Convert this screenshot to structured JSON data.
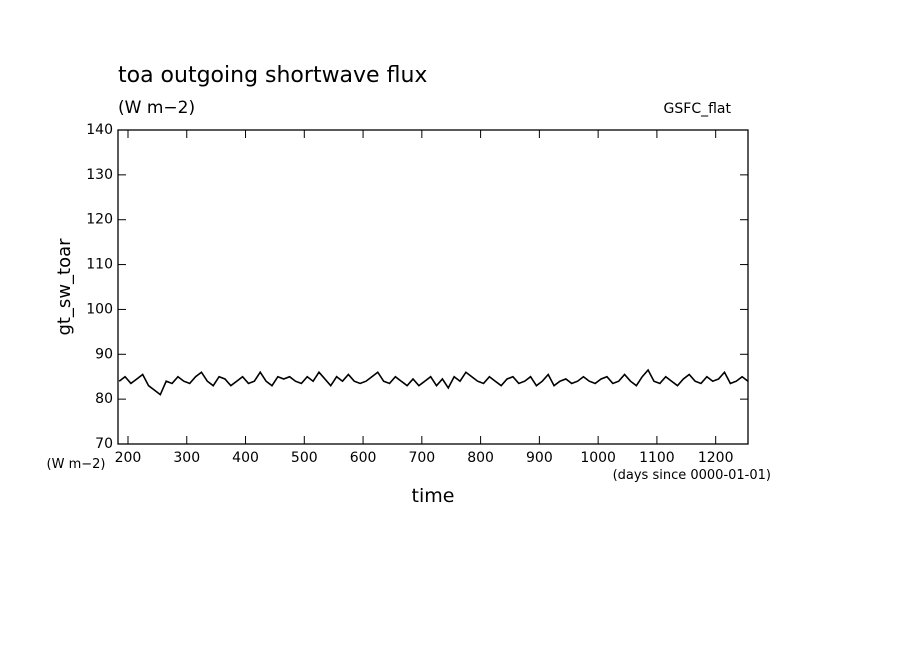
{
  "chart_data": {
    "type": "line",
    "title": "toa outgoing shortwave flux",
    "subtitle": "(W m−2)",
    "annotation": "GSFC_flat",
    "y_label": "gt_sw_toar",
    "y_unit": "(W m−2)",
    "x_label": "time",
    "x_unit": "(days since 0000-01-01)",
    "xlim": [
      183,
      1255
    ],
    "ylim": [
      70,
      140
    ],
    "xticks": [
      200,
      300,
      400,
      500,
      600,
      700,
      800,
      900,
      1000,
      1100,
      1200
    ],
    "yticks": [
      70,
      80,
      90,
      100,
      110,
      120,
      130,
      140
    ],
    "x": [
      185,
      195,
      205,
      215,
      225,
      235,
      245,
      255,
      265,
      275,
      285,
      295,
      305,
      315,
      325,
      335,
      345,
      355,
      365,
      375,
      385,
      395,
      405,
      415,
      425,
      435,
      445,
      455,
      465,
      475,
      485,
      495,
      505,
      515,
      525,
      535,
      545,
      555,
      565,
      575,
      585,
      595,
      605,
      615,
      625,
      635,
      645,
      655,
      665,
      675,
      685,
      695,
      705,
      715,
      725,
      735,
      745,
      755,
      765,
      775,
      785,
      795,
      805,
      815,
      825,
      835,
      845,
      855,
      865,
      875,
      885,
      895,
      905,
      915,
      925,
      935,
      945,
      955,
      965,
      975,
      985,
      995,
      1005,
      1015,
      1025,
      1035,
      1045,
      1055,
      1065,
      1075,
      1085,
      1095,
      1105,
      1115,
      1125,
      1135,
      1145,
      1155,
      1165,
      1175,
      1185,
      1195,
      1205,
      1215,
      1225,
      1235,
      1245,
      1255
    ],
    "series": [
      {
        "color": "#000000",
        "values": [
          84,
          85,
          83.5,
          84.5,
          85.5,
          83,
          82,
          81,
          84,
          83.5,
          85,
          84,
          83.5,
          85,
          86,
          84,
          83,
          85,
          84.5,
          83,
          84,
          85,
          83.5,
          84,
          86,
          84,
          83,
          85,
          84.5,
          85,
          84,
          83.5,
          85,
          84,
          86,
          84.5,
          83,
          85,
          84,
          85.5,
          84,
          83.5,
          84,
          85,
          86,
          84,
          83.5,
          85,
          84,
          83,
          84.5,
          83,
          84,
          85,
          83,
          84.5,
          82.5,
          85,
          84,
          86,
          85,
          84,
          83.5,
          85,
          84,
          83,
          84.5,
          85,
          83.5,
          84,
          85,
          83,
          84,
          85.5,
          83,
          84,
          84.5,
          83.5,
          84,
          85,
          84,
          83.5,
          84.5,
          85,
          83.5,
          84,
          85.5,
          84,
          83,
          85,
          86.5,
          84,
          83.5,
          85,
          84,
          83,
          84.5,
          85.5,
          84,
          83.5,
          85,
          84,
          84.5,
          86,
          83.5,
          84,
          85,
          84
        ]
      }
    ]
  }
}
